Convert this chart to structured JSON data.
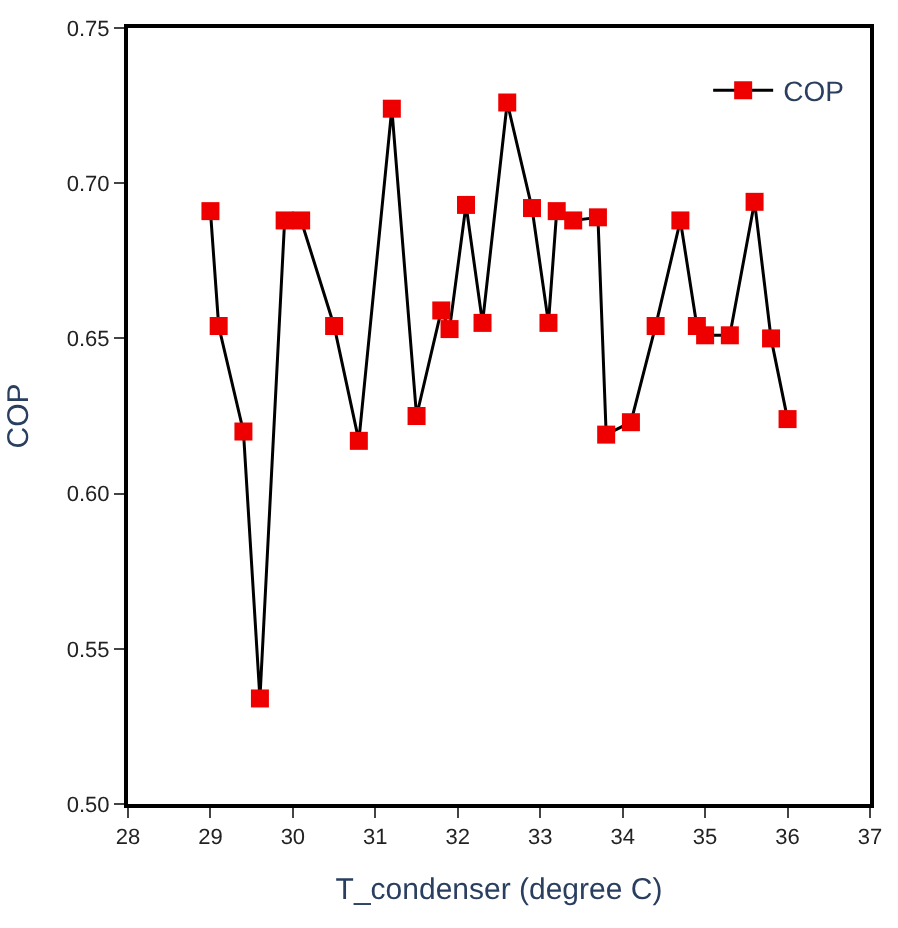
{
  "chart_data": {
    "type": "line",
    "xlabel": "T_condenser (degree C)",
    "ylabel": "COP",
    "x": [
      29.0,
      29.1,
      29.4,
      29.6,
      29.9,
      30.1,
      30.5,
      30.8,
      31.2,
      31.5,
      31.8,
      31.9,
      32.1,
      32.3,
      32.6,
      32.9,
      33.1,
      33.2,
      33.4,
      33.7,
      33.8,
      34.1,
      34.4,
      34.7,
      34.9,
      35.0,
      35.3,
      35.6,
      35.8,
      36.0
    ],
    "series": [
      {
        "name": "COP",
        "color": "#ee0000",
        "values": [
          0.691,
          0.654,
          0.62,
          0.534,
          0.688,
          0.688,
          0.654,
          0.617,
          0.724,
          0.625,
          0.659,
          0.653,
          0.693,
          0.655,
          0.726,
          0.692,
          0.655,
          0.691,
          0.688,
          0.689,
          0.619,
          0.623,
          0.654,
          0.688,
          0.654,
          0.651,
          0.651,
          0.694,
          0.65,
          0.624
        ]
      }
    ],
    "xlim": [
      28,
      37
    ],
    "xticks": [
      28,
      29,
      30,
      31,
      32,
      33,
      34,
      35,
      36,
      37
    ],
    "ylim": [
      0.5,
      0.75
    ],
    "yticks": [
      {
        "value": 0.5,
        "label": "0.50"
      },
      {
        "value": 0.55,
        "label": "0.55"
      },
      {
        "value": 0.6,
        "label": "0.60"
      },
      {
        "value": 0.65,
        "label": "0.65"
      },
      {
        "value": 0.7,
        "label": "0.70"
      },
      {
        "value": 0.75,
        "label": "0.75"
      }
    ],
    "legend": "top right",
    "marker": "square",
    "line_style": "solid"
  }
}
